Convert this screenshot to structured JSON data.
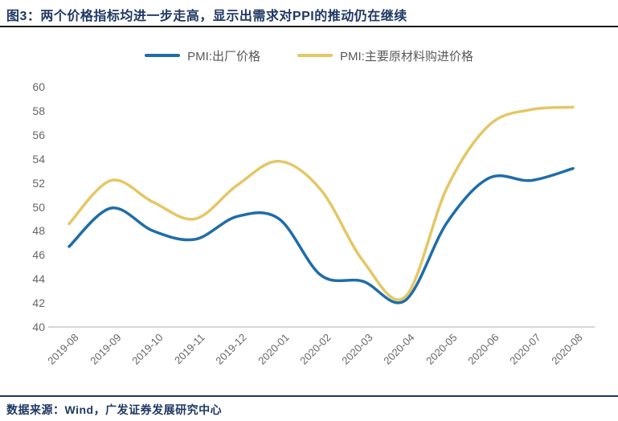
{
  "header": {
    "title": "图3：两个价格指标均进一步走高，显示出需求对PPI的推动仍在继续"
  },
  "footer": {
    "source": "数据来源：Wind，广发证券发展研究中心"
  },
  "chart_data": {
    "type": "line",
    "x": [
      "2019-08",
      "2019-09",
      "2019-10",
      "2019-11",
      "2019-12",
      "2020-01",
      "2020-02",
      "2020-03",
      "2020-04",
      "2020-05",
      "2020-06",
      "2020-07",
      "2020-08"
    ],
    "series": [
      {
        "name": "PMI:出厂价格",
        "color": "#1F6DA8",
        "values": [
          46.7,
          49.9,
          48.0,
          47.3,
          49.2,
          49.0,
          44.3,
          43.8,
          42.2,
          48.7,
          52.4,
          52.2,
          53.2
        ]
      },
      {
        "name": "PMI:主要原材料购进价格",
        "color": "#E4C765",
        "values": [
          48.6,
          52.2,
          50.4,
          49.0,
          51.8,
          53.8,
          51.4,
          45.5,
          42.5,
          51.6,
          56.8,
          58.1,
          58.3
        ]
      }
    ],
    "ylim": [
      40,
      60
    ],
    "yticks": [
      40,
      42,
      44,
      46,
      48,
      50,
      52,
      54,
      56,
      58,
      60
    ],
    "smooth": true,
    "grid": false,
    "legend_position": "top",
    "xlabel": "",
    "ylabel": ""
  },
  "colors": {
    "title_navy": "#1F3864",
    "title_rule": "#1a1a1a",
    "footer_rule": "#1F3864",
    "axis_line": "#C9C9C9",
    "tick_label": "#666666",
    "legend_text": "#595959"
  }
}
